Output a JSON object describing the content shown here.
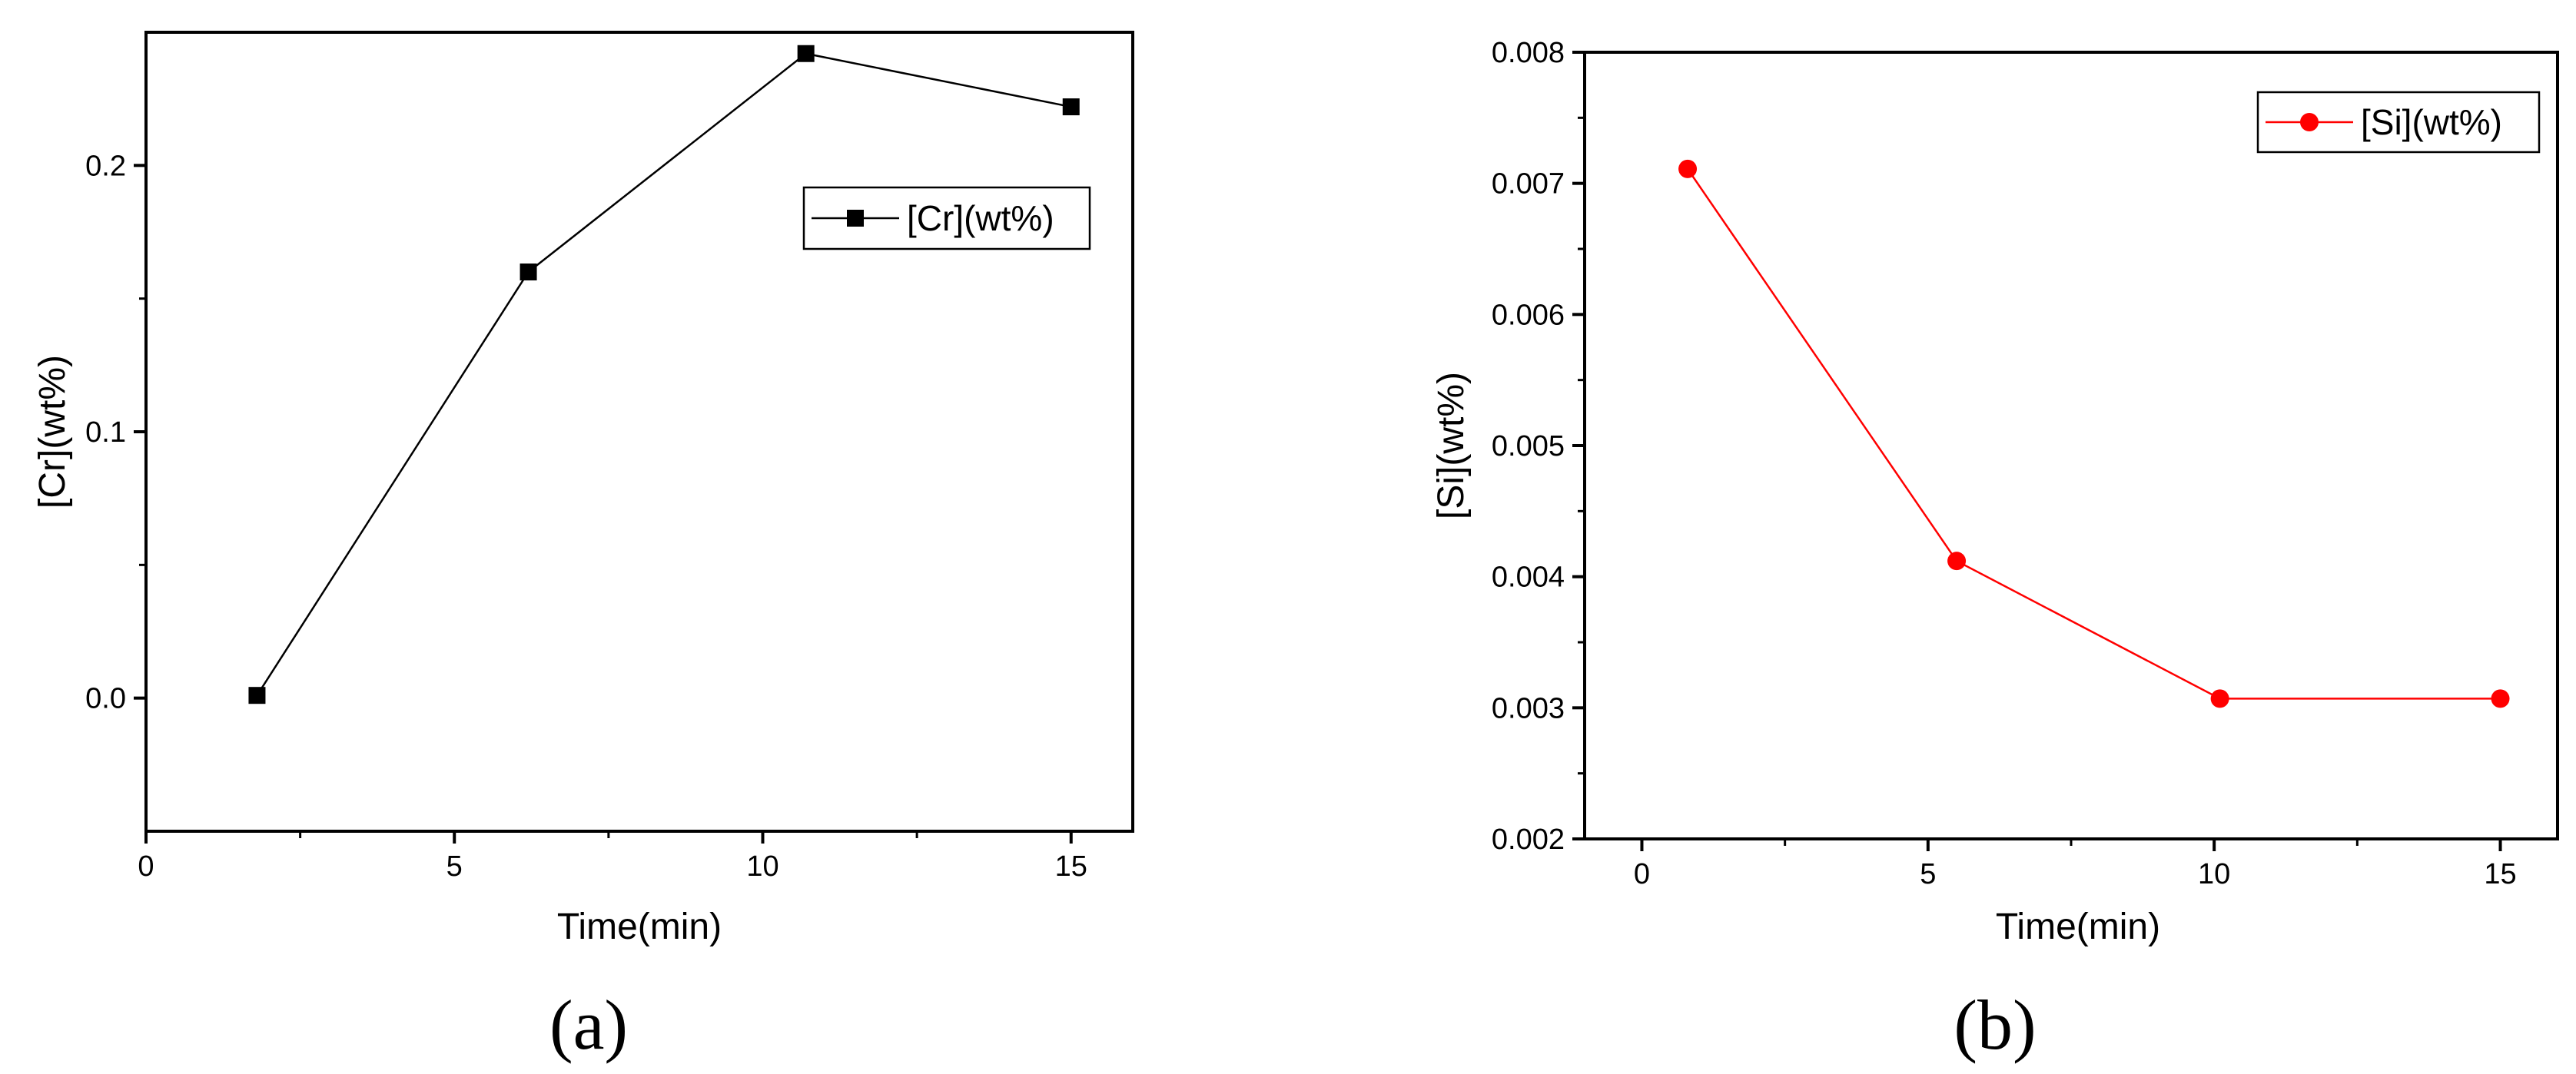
{
  "chart_data": [
    {
      "type": "line",
      "panel_label": "(a)",
      "xlabel": "Time(min)",
      "ylabel": "[Cr](wt%)",
      "xlim": [
        0,
        16
      ],
      "ylim": [
        -0.05,
        0.25
      ],
      "x_ticks": [
        0,
        5,
        10,
        15
      ],
      "x_tick_labels": [
        "0",
        "5",
        "10",
        "15"
      ],
      "y_ticks": [
        0.0,
        0.1,
        0.2
      ],
      "y_tick_labels": [
        "0.0",
        "0.1",
        "0.2"
      ],
      "grid": false,
      "legend_position": "upper-right",
      "series": [
        {
          "name": "[Cr](wt%)",
          "color": "#000000",
          "marker": "square",
          "x": [
            1.8,
            6.2,
            10.7,
            15
          ],
          "y": [
            0.001,
            0.16,
            0.242,
            0.222
          ]
        }
      ]
    },
    {
      "type": "line",
      "panel_label": "(b)",
      "xlabel": "Time(min)",
      "ylabel": "[Si](wt%)",
      "xlim": [
        -1,
        16
      ],
      "ylim": [
        0.002,
        0.008
      ],
      "x_ticks": [
        0,
        5,
        10,
        15
      ],
      "x_tick_labels": [
        "0",
        "5",
        "10",
        "15"
      ],
      "y_ticks": [
        0.002,
        0.003,
        0.004,
        0.005,
        0.006,
        0.007,
        0.008
      ],
      "y_tick_labels": [
        "0.002",
        "0.003",
        "0.004",
        "0.005",
        "0.006",
        "0.007",
        "0.008"
      ],
      "grid": false,
      "legend_position": "top-right",
      "series": [
        {
          "name": "[Si](wt%)",
          "color": "#ff0000",
          "marker": "circle",
          "x": [
            0.8,
            5.5,
            10.1,
            15
          ],
          "y": [
            0.00711,
            0.00412,
            0.00307,
            0.00307
          ]
        }
      ]
    }
  ]
}
